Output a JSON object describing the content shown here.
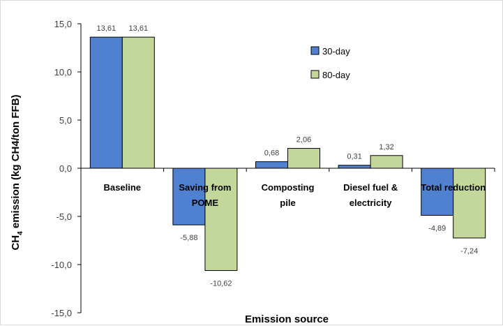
{
  "chart_data": {
    "type": "bar",
    "categories": [
      [
        "Baseline"
      ],
      [
        "Saving from",
        "POME"
      ],
      [
        "Composting",
        "pile"
      ],
      [
        "Diesel fuel &",
        "electricity"
      ],
      [
        "Total reduction"
      ]
    ],
    "series": [
      {
        "name": "30-day",
        "color": "#4f81d0",
        "values": [
          13.61,
          -5.88,
          0.68,
          0.31,
          -4.89
        ],
        "labels": [
          "13,61",
          "-5,88",
          "0,68",
          "0,31",
          "-4,89"
        ]
      },
      {
        "name": "80-day",
        "color": "#c4d79b",
        "values": [
          13.61,
          -10.62,
          2.06,
          1.32,
          -7.24
        ],
        "labels": [
          "13,61",
          "-10,62",
          "2,06",
          "1,32",
          "-7,24"
        ]
      }
    ],
    "yticks": [
      15,
      10,
      5,
      0,
      -5,
      -10,
      -15
    ],
    "ytick_labels": [
      "15,0",
      "10,0",
      "5,0",
      "0,0",
      "-5,0",
      "-10,0",
      "-15,0"
    ],
    "ylim": [
      -15,
      15
    ],
    "xlabel": "Emission source",
    "ylabel_prefix": "CH",
    "ylabel_sub": "4",
    "ylabel_suffix": " emission (kg CH4/ton FFB)",
    "legend_position": "top-right",
    "grid": false
  }
}
